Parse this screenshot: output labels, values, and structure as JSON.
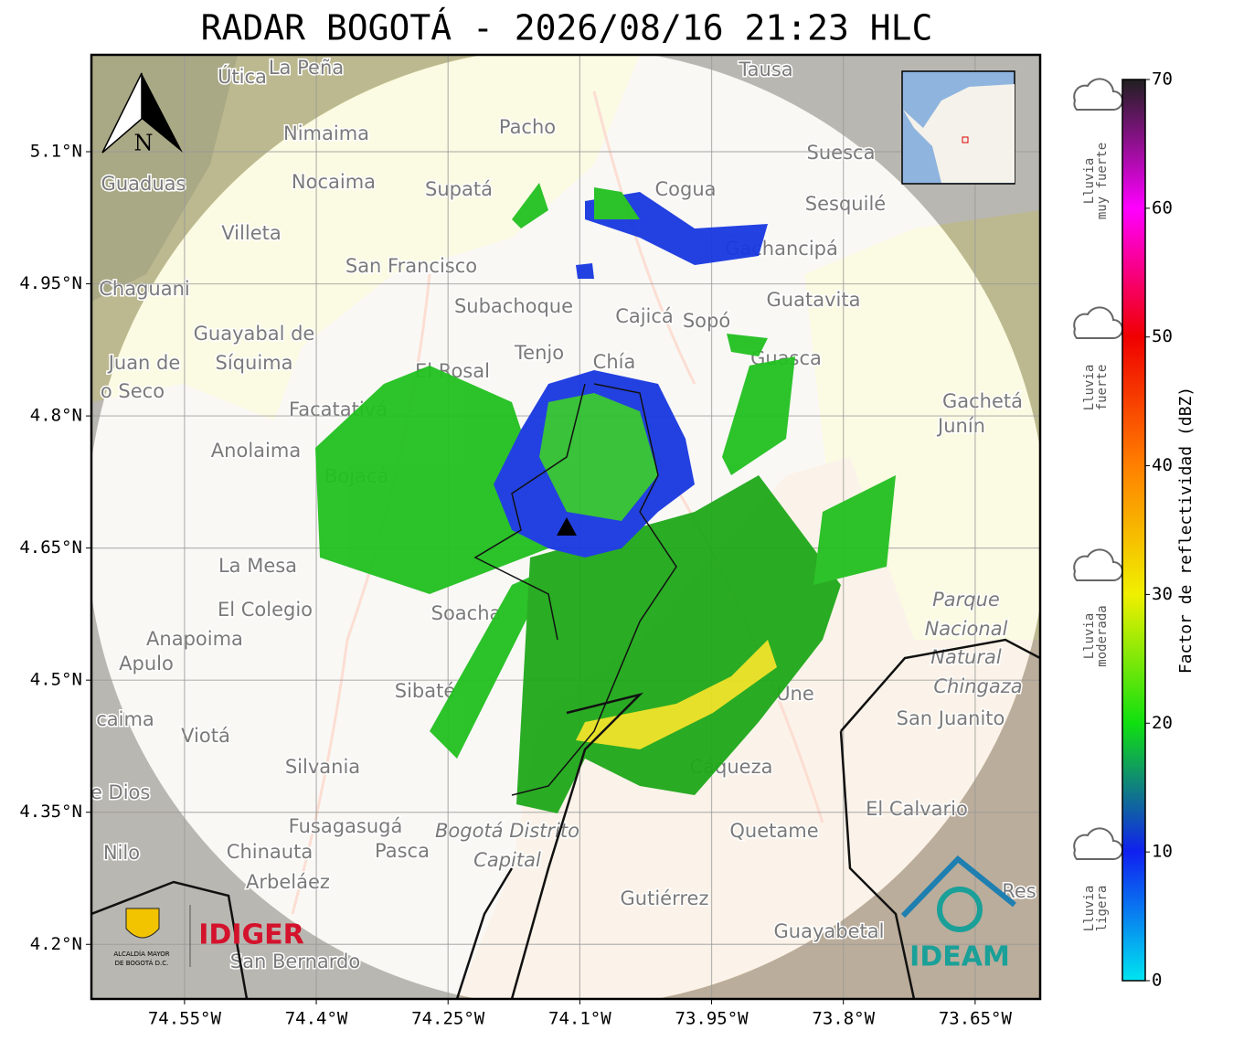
{
  "title": "RADAR BOGOTÁ - 2026/08/16 21:23 HLC",
  "map": {
    "xlim": [
      -74.656,
      -73.576
    ],
    "ylim": [
      4.138,
      5.21
    ],
    "grid": true,
    "xticks": [
      {
        "value": -74.55,
        "label": "74.55°W"
      },
      {
        "value": -74.4,
        "label": "74.4°W"
      },
      {
        "value": -74.25,
        "label": "74.25°W"
      },
      {
        "value": -74.1,
        "label": "74.1°W"
      },
      {
        "value": -73.95,
        "label": "73.95°W"
      },
      {
        "value": -73.8,
        "label": "73.8°W"
      },
      {
        "value": -73.65,
        "label": "73.65°W"
      }
    ],
    "yticks": [
      {
        "value": 5.1,
        "label": "5.1°N"
      },
      {
        "value": 4.95,
        "label": "4.95°N"
      },
      {
        "value": 4.8,
        "label": "4.8°N"
      },
      {
        "value": 4.65,
        "label": "4.65°N"
      },
      {
        "value": 4.5,
        "label": "4.5°N"
      },
      {
        "value": 4.35,
        "label": "4.35°N"
      },
      {
        "value": 4.2,
        "label": "4.2°N"
      }
    ],
    "north": "N",
    "places": [
      "Útica",
      "La Peña",
      "Tausa",
      "Pacho",
      "Nimaima",
      "Suesca",
      "Guaduas",
      "Nocaima",
      "Supatá",
      "Cogua",
      "Sesquilé",
      "Villeta",
      "Gachancipá",
      "San Francisco",
      "Chaguani",
      "Guatavita",
      "Subachoque",
      "Cajicá",
      "Sopó",
      "Guayabal de",
      "Síquima",
      "Tenjo",
      "Chía",
      "Guasca",
      "Juan de",
      "o Seco",
      "El Rosal",
      "Facatativá",
      "Gachetá",
      "Junín",
      "Anolaima",
      "Bojacá",
      "La Mesa",
      "Parque",
      "Nacional",
      "Natural",
      "Chingaza",
      "El Colegio",
      "Soacha",
      "Anapoima",
      "Apulo",
      "Sibaté",
      "San Juanito",
      "caima",
      "Viotá",
      "Silvania",
      "Une",
      "Cáqueza",
      "de Dios",
      "El Calvario",
      "Fusagasugá",
      "Quetame",
      "Bogotá Distrito",
      "Capital",
      "Nilo",
      "Chinauta",
      "Pasca",
      "Arbeláez",
      "Gutiérrez",
      "Guayabetal",
      "San Bernardo",
      "Res"
    ]
  },
  "colorbar": {
    "label": "Factor de reflectividad (dBZ)",
    "lim": [
      0,
      70
    ],
    "ticks": [
      0,
      10,
      20,
      30,
      40,
      50,
      60,
      70
    ],
    "colors": [
      "#00e5f0",
      "#1020f0",
      "#10e010",
      "#f0f000",
      "#ff8000",
      "#f00000",
      "#ff00ff",
      "#202020"
    ]
  },
  "legend": [
    [
      "Lluvia",
      "muy fuerte"
    ],
    [
      "Lluvia",
      "fuerte"
    ],
    [
      "Lluvia",
      "moderada"
    ],
    [
      "Lluvia",
      "ligera"
    ]
  ],
  "logos": {
    "alcaldia": [
      "ALCALDÍA MAYOR",
      "DE BOGOTÁ D.C."
    ],
    "idiger": "IDIGER",
    "ideam": "IDEAM"
  }
}
